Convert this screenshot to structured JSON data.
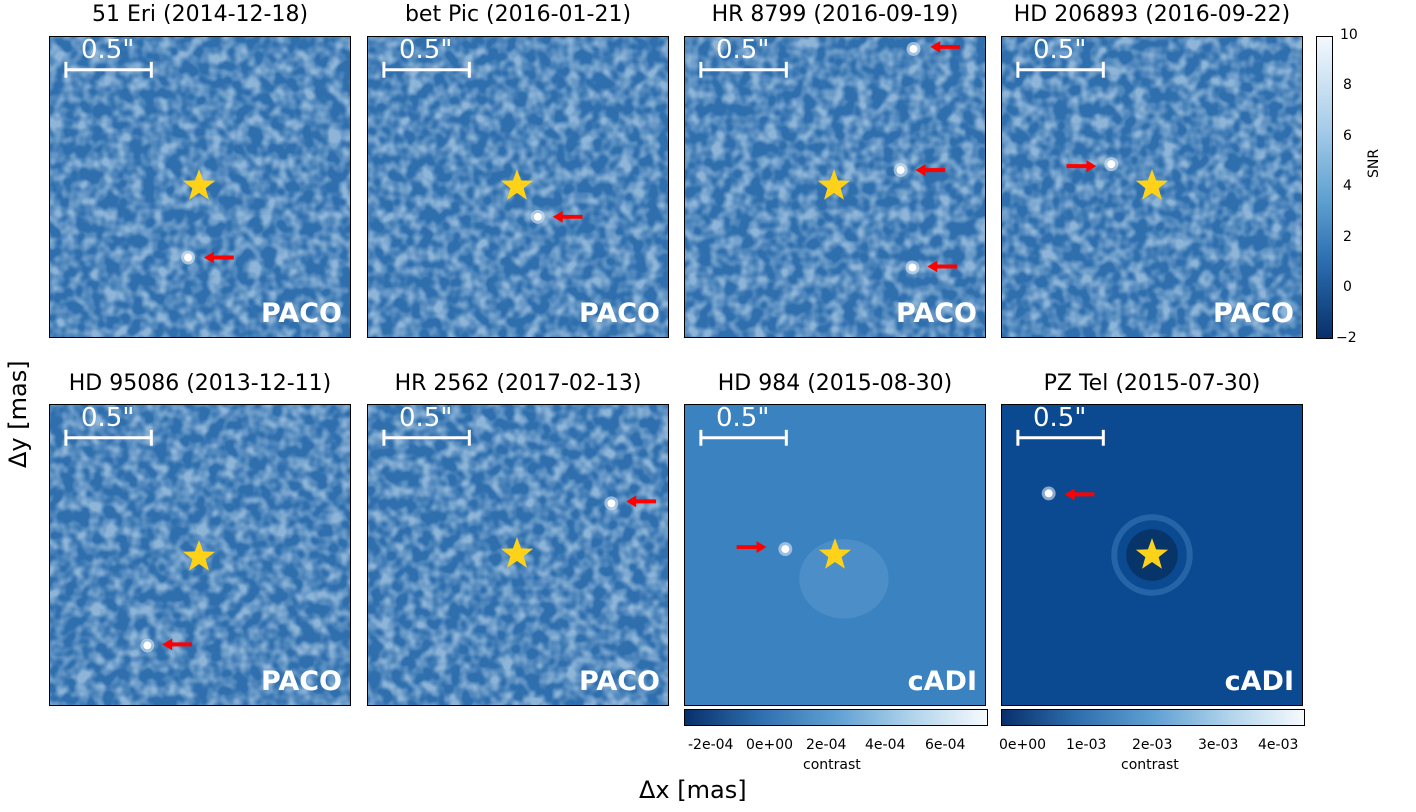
{
  "panels": [
    {
      "title": "51 Eri (2014-12-18)",
      "method": "PACO",
      "style": "paco"
    },
    {
      "title": "bet Pic (2016-01-21)",
      "method": "PACO",
      "style": "paco"
    },
    {
      "title": "HR 8799 (2016-09-19)",
      "method": "PACO",
      "style": "paco"
    },
    {
      "title": "HD 206893 (2016-09-22)",
      "method": "PACO",
      "style": "paco"
    },
    {
      "title": "HD 95086 (2013-12-11)",
      "method": "PACO",
      "style": "paco"
    },
    {
      "title": "HR 2562 (2017-02-13)",
      "method": "PACO",
      "style": "paco"
    },
    {
      "title": "HD 984 (2015-08-30)",
      "method": "cADI",
      "style": "cadi-light"
    },
    {
      "title": "PZ Tel (2015-07-30)",
      "method": "cADI",
      "style": "cadi-dark"
    }
  ],
  "scale_bar_label": "0.5\"",
  "axes": {
    "xlabel": "Δx [mas]",
    "ylabel": "Δy [mas]"
  },
  "colorbars": {
    "snr": {
      "label": "SNR",
      "ticks": [
        "10",
        "8",
        "6",
        "4",
        "2",
        "0",
        "−2"
      ]
    },
    "hd984": {
      "label": "contrast",
      "ticks": [
        "-2e-04",
        "0e+00",
        "2e-04",
        "4e-04",
        "6e-04"
      ]
    },
    "pztel": {
      "label": "contrast",
      "ticks": [
        "0e+00",
        "1e-03",
        "2e-03",
        "3e-03",
        "4e-03"
      ]
    }
  },
  "colors": {
    "noise": "#2f6fae",
    "star": "#ffd21a",
    "arrow": "#ff0000",
    "cadi_light": "#3b82c0",
    "cadi_dark": "#0b4a90"
  }
}
